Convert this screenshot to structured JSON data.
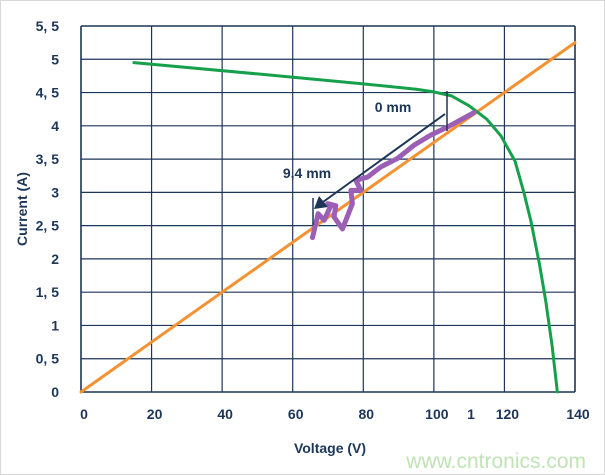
{
  "chart_data": {
    "type": "line",
    "title": "",
    "xlabel": "Voltage (V)",
    "ylabel": "Current (A)",
    "xlim": [
      0,
      140
    ],
    "ylim": [
      0,
      5.5
    ],
    "grid": true,
    "x_ticks": [
      "0",
      "20",
      "40",
      "60",
      "80",
      "100",
      "120",
      "140"
    ],
    "x_extra_label": "1",
    "y_ticks": [
      "0",
      "0, 5",
      "1",
      "1, 5",
      "2",
      "2, 5",
      "3",
      "3, 5",
      "4",
      "4, 5",
      "5",
      "5, 5"
    ],
    "series": [
      {
        "color": "#f39232",
        "points": [
          [
            0,
            0
          ],
          [
            140,
            5.25
          ]
        ]
      },
      {
        "color": "#17a04c",
        "points": [
          [
            15,
            4.95
          ],
          [
            50,
            4.78
          ],
          [
            80,
            4.63
          ],
          [
            95,
            4.55
          ],
          [
            100,
            4.51
          ],
          [
            105,
            4.45
          ],
          [
            110,
            4.3
          ],
          [
            115,
            4.1
          ],
          [
            119,
            3.85
          ],
          [
            123,
            3.47
          ],
          [
            125.5,
            3.0
          ],
          [
            127.5,
            2.57
          ],
          [
            130,
            1.9
          ],
          [
            131.7,
            1.37
          ],
          [
            133.5,
            0.7
          ],
          [
            135,
            0
          ]
        ]
      },
      {
        "color": "#9b5fb5",
        "points": [
          [
            65.6,
            2.32
          ],
          [
            67.2,
            2.68
          ],
          [
            68.9,
            2.58
          ],
          [
            70.8,
            2.8
          ],
          [
            69.9,
            2.83
          ],
          [
            72.2,
            2.8
          ],
          [
            71.7,
            2.63
          ],
          [
            74.1,
            2.45
          ],
          [
            76.9,
            2.83
          ],
          [
            76.5,
            3.03
          ],
          [
            79.3,
            3.03
          ],
          [
            77.9,
            3.18
          ],
          [
            81.2,
            3.23
          ],
          [
            84.9,
            3.38
          ],
          [
            89.7,
            3.51
          ],
          [
            94.4,
            3.71
          ],
          [
            99.1,
            3.86
          ],
          [
            103.8,
            3.98
          ],
          [
            111.4,
            4.2
          ]
        ]
      }
    ],
    "annotations": {
      "start_label": "0 mm",
      "end_label": "9,4 mm"
    }
  },
  "watermark": "www.cntronics.com",
  "colors": {
    "axis": "#1d3557",
    "grid": "#1d3557"
  }
}
